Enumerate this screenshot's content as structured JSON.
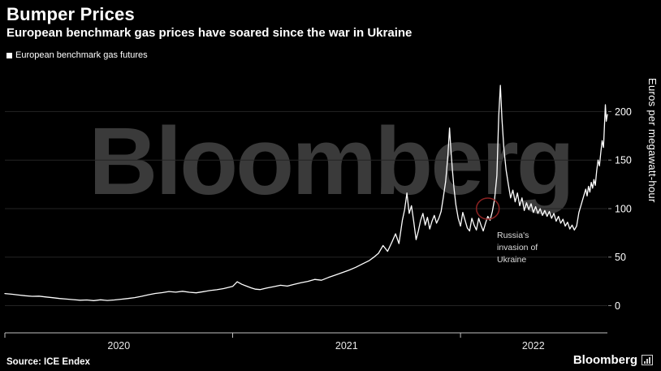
{
  "header": {
    "title": "Bumper Prices",
    "subtitle": "European benchmark gas prices have soared since the war in Ukraine"
  },
  "legend": {
    "label": "European benchmark gas futures"
  },
  "watermark": "Bloomberg",
  "chart_data": {
    "type": "line",
    "title": "Bumper Prices",
    "xlabel": "",
    "ylabel": "Euros per megawatt-hour",
    "xlim": [
      2020.0,
      2022.645
    ],
    "ylim": [
      -28,
      248
    ],
    "yticks": [
      0,
      50,
      100,
      150,
      200
    ],
    "xticks": [
      2020,
      2021,
      2022
    ],
    "xlabels": [
      {
        "label": "2020",
        "x": 2020.5
      },
      {
        "label": "2021",
        "x": 2021.5
      },
      {
        "label": "2022",
        "x": 2022.32
      }
    ],
    "grid": true,
    "legend_position": "top-left",
    "annotation": {
      "text": "Russia's invasion of Ukraine",
      "x": 2022.12,
      "y": 100,
      "circle_color": "#8b2222"
    },
    "series": [
      {
        "name": "European benchmark gas futures",
        "color": "#ffffff",
        "points": [
          [
            2020.0,
            12.5
          ],
          [
            2020.03,
            11.8
          ],
          [
            2020.06,
            11.0
          ],
          [
            2020.09,
            10.2
          ],
          [
            2020.12,
            9.6
          ],
          [
            2020.15,
            9.8
          ],
          [
            2020.18,
            9.0
          ],
          [
            2020.21,
            8.2
          ],
          [
            2020.24,
            7.4
          ],
          [
            2020.27,
            6.8
          ],
          [
            2020.3,
            6.2
          ],
          [
            2020.33,
            5.6
          ],
          [
            2020.36,
            5.9
          ],
          [
            2020.39,
            5.2
          ],
          [
            2020.42,
            6.0
          ],
          [
            2020.45,
            5.4
          ],
          [
            2020.48,
            5.9
          ],
          [
            2020.51,
            6.6
          ],
          [
            2020.54,
            7.4
          ],
          [
            2020.57,
            8.3
          ],
          [
            2020.6,
            9.6
          ],
          [
            2020.63,
            11.2
          ],
          [
            2020.66,
            12.6
          ],
          [
            2020.69,
            13.4
          ],
          [
            2020.72,
            14.6
          ],
          [
            2020.75,
            13.9
          ],
          [
            2020.78,
            14.8
          ],
          [
            2020.81,
            13.8
          ],
          [
            2020.84,
            13.2
          ],
          [
            2020.87,
            14.4
          ],
          [
            2020.9,
            15.6
          ],
          [
            2020.93,
            16.4
          ],
          [
            2020.96,
            17.6
          ],
          [
            2021.0,
            19.8
          ],
          [
            2021.02,
            24.6
          ],
          [
            2021.04,
            22.0
          ],
          [
            2021.06,
            20.2
          ],
          [
            2021.08,
            18.4
          ],
          [
            2021.1,
            17.0
          ],
          [
            2021.12,
            16.6
          ],
          [
            2021.15,
            18.2
          ],
          [
            2021.18,
            19.6
          ],
          [
            2021.21,
            21.0
          ],
          [
            2021.24,
            20.2
          ],
          [
            2021.27,
            22.0
          ],
          [
            2021.3,
            23.6
          ],
          [
            2021.33,
            25.0
          ],
          [
            2021.36,
            27.0
          ],
          [
            2021.39,
            26.2
          ],
          [
            2021.42,
            29.0
          ],
          [
            2021.45,
            31.5
          ],
          [
            2021.48,
            34.0
          ],
          [
            2021.51,
            36.5
          ],
          [
            2021.54,
            39.5
          ],
          [
            2021.57,
            43.0
          ],
          [
            2021.6,
            46.5
          ],
          [
            2021.62,
            50.0
          ],
          [
            2021.64,
            54.0
          ],
          [
            2021.66,
            62.0
          ],
          [
            2021.68,
            56.0
          ],
          [
            2021.7,
            66.0
          ],
          [
            2021.715,
            74.0
          ],
          [
            2021.73,
            64.0
          ],
          [
            2021.745,
            88.0
          ],
          [
            2021.755,
            99.0
          ],
          [
            2021.765,
            116.0
          ],
          [
            2021.775,
            95.0
          ],
          [
            2021.785,
            103.0
          ],
          [
            2021.795,
            86.0
          ],
          [
            2021.805,
            68.0
          ],
          [
            2021.815,
            77.0
          ],
          [
            2021.825,
            88.0
          ],
          [
            2021.835,
            95.0
          ],
          [
            2021.845,
            83.0
          ],
          [
            2021.855,
            91.0
          ],
          [
            2021.865,
            79.0
          ],
          [
            2021.875,
            87.0
          ],
          [
            2021.885,
            93.0
          ],
          [
            2021.895,
            85.0
          ],
          [
            2021.905,
            90.0
          ],
          [
            2021.915,
            97.0
          ],
          [
            2021.925,
            112.0
          ],
          [
            2021.935,
            128.0
          ],
          [
            2021.945,
            155.0
          ],
          [
            2021.952,
            183.0
          ],
          [
            2021.958,
            160.0
          ],
          [
            2021.965,
            139.0
          ],
          [
            2021.972,
            120.0
          ],
          [
            2021.98,
            104.0
          ],
          [
            2021.99,
            90.0
          ],
          [
            2022.0,
            82.0
          ],
          [
            2022.01,
            96.0
          ],
          [
            2022.02,
            88.0
          ],
          [
            2022.03,
            80.0
          ],
          [
            2022.04,
            77.0
          ],
          [
            2022.05,
            90.0
          ],
          [
            2022.06,
            83.0
          ],
          [
            2022.07,
            78.0
          ],
          [
            2022.08,
            90.0
          ],
          [
            2022.09,
            83.0
          ],
          [
            2022.1,
            77.0
          ],
          [
            2022.11,
            85.0
          ],
          [
            2022.12,
            92.0
          ],
          [
            2022.13,
            88.0
          ],
          [
            2022.14,
            97.0
          ],
          [
            2022.15,
            110.0
          ],
          [
            2022.16,
            134.0
          ],
          [
            2022.168,
            196.0
          ],
          [
            2022.175,
            227.0
          ],
          [
            2022.182,
            193.0
          ],
          [
            2022.19,
            163.0
          ],
          [
            2022.2,
            140.0
          ],
          [
            2022.21,
            125.0
          ],
          [
            2022.22,
            111.0
          ],
          [
            2022.23,
            119.0
          ],
          [
            2022.24,
            107.0
          ],
          [
            2022.25,
            116.0
          ],
          [
            2022.26,
            103.0
          ],
          [
            2022.27,
            111.0
          ],
          [
            2022.28,
            98.0
          ],
          [
            2022.29,
            106.0
          ],
          [
            2022.3,
            99.0
          ],
          [
            2022.31,
            105.0
          ],
          [
            2022.32,
            96.0
          ],
          [
            2022.33,
            102.0
          ],
          [
            2022.34,
            95.0
          ],
          [
            2022.35,
            100.0
          ],
          [
            2022.36,
            93.0
          ],
          [
            2022.37,
            98.0
          ],
          [
            2022.38,
            92.0
          ],
          [
            2022.39,
            97.0
          ],
          [
            2022.4,
            90.0
          ],
          [
            2022.41,
            95.0
          ],
          [
            2022.42,
            87.0
          ],
          [
            2022.43,
            92.0
          ],
          [
            2022.44,
            85.0
          ],
          [
            2022.45,
            89.0
          ],
          [
            2022.46,
            82.0
          ],
          [
            2022.47,
            86.0
          ],
          [
            2022.48,
            79.0
          ],
          [
            2022.49,
            83.0
          ],
          [
            2022.5,
            78.0
          ],
          [
            2022.51,
            82.0
          ],
          [
            2022.52,
            96.0
          ],
          [
            2022.53,
            104.0
          ],
          [
            2022.54,
            112.0
          ],
          [
            2022.55,
            120.0
          ],
          [
            2022.556,
            113.0
          ],
          [
            2022.562,
            123.0
          ],
          [
            2022.568,
            117.0
          ],
          [
            2022.574,
            127.0
          ],
          [
            2022.58,
            121.0
          ],
          [
            2022.586,
            130.0
          ],
          [
            2022.592,
            124.0
          ],
          [
            2022.598,
            139.0
          ],
          [
            2022.604,
            150.0
          ],
          [
            2022.61,
            144.0
          ],
          [
            2022.616,
            158.0
          ],
          [
            2022.622,
            170.0
          ],
          [
            2022.628,
            163.0
          ],
          [
            2022.632,
            186.0
          ],
          [
            2022.636,
            207.0
          ],
          [
            2022.64,
            190.0
          ],
          [
            2022.645,
            197.0
          ]
        ]
      }
    ]
  },
  "footer": {
    "source": "Source: ICE Endex",
    "brand": "Bloomberg"
  }
}
